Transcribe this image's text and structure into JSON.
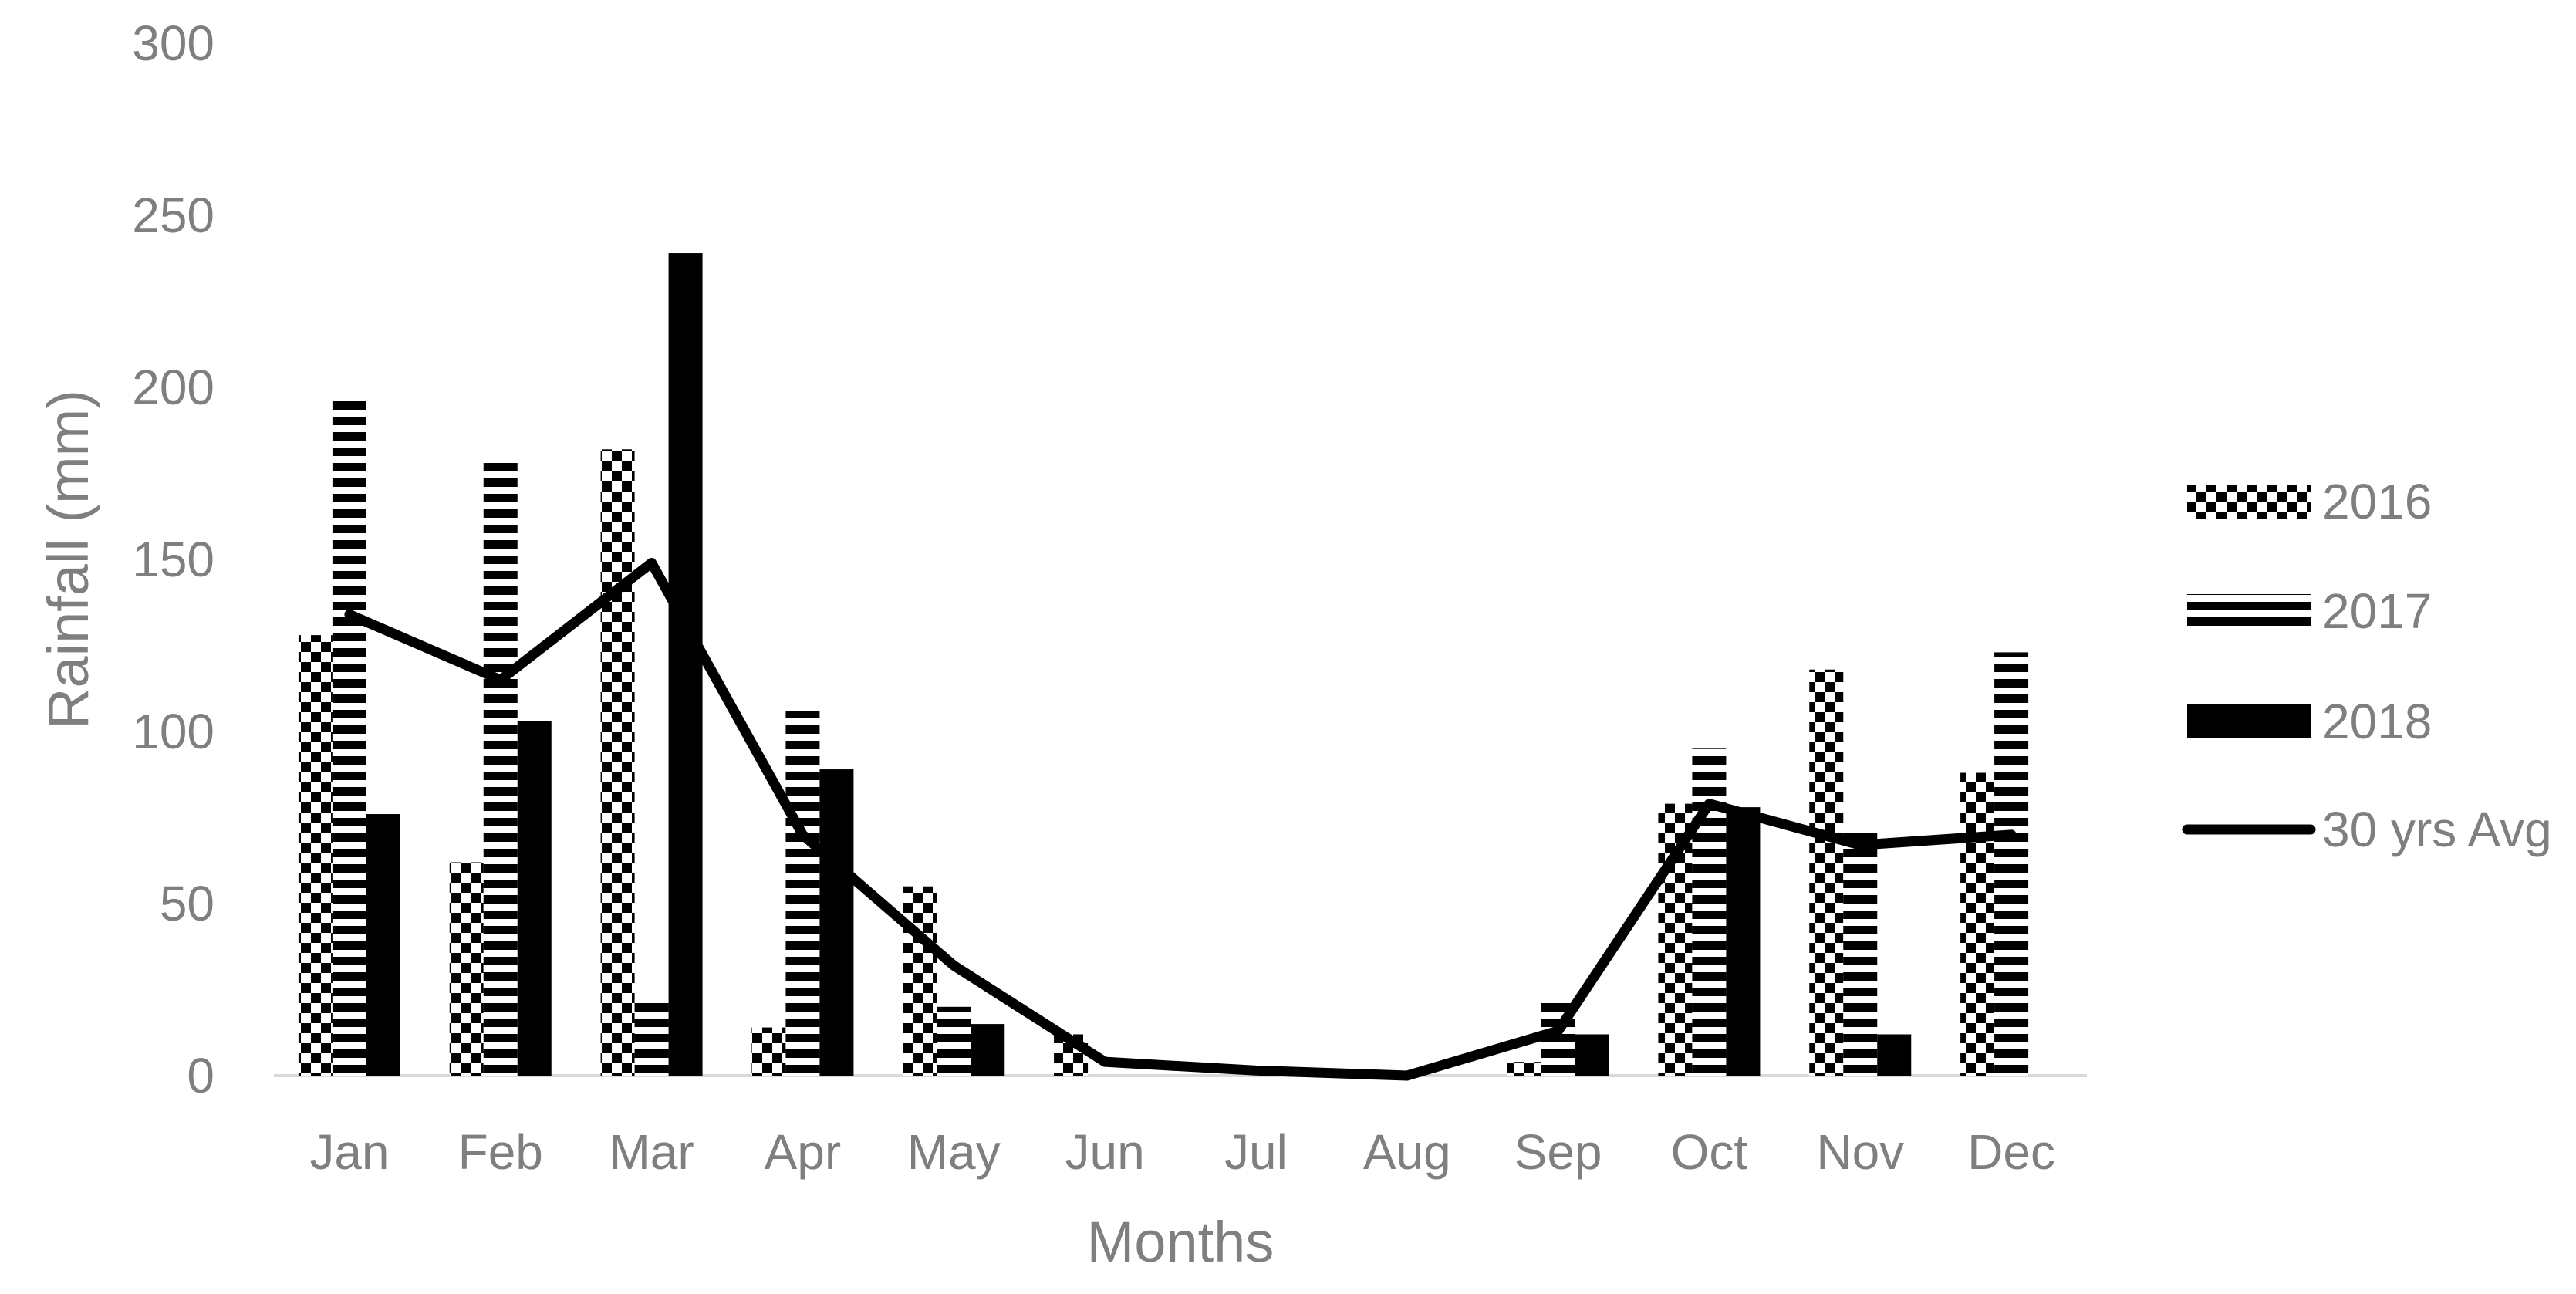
{
  "chart_data": {
    "type": "bar",
    "title": "",
    "xlabel": "Months",
    "ylabel": "Rainfall (mm)",
    "ylim": [
      0,
      300
    ],
    "yticks": [
      "0",
      "50",
      "100",
      "150",
      "200",
      "250",
      "300"
    ],
    "grid": false,
    "legend_position": "right",
    "categories": [
      "Jan",
      "Feb",
      "Mar",
      "Apr",
      "May",
      "Jun",
      "Jul",
      "Aug",
      "Sep",
      "Oct",
      "Nov",
      "Dec"
    ],
    "series": [
      {
        "name": "2016",
        "type": "bar",
        "pattern": "checker",
        "values": [
          128,
          62,
          182,
          14,
          55,
          12,
          0,
          0,
          4,
          79,
          118,
          88
        ]
      },
      {
        "name": "2017",
        "type": "bar",
        "pattern": "hstripes",
        "values": [
          196,
          180,
          22,
          106,
          20,
          0,
          0,
          0,
          22,
          95,
          72,
          123
        ]
      },
      {
        "name": "2018",
        "type": "bar",
        "pattern": "solid",
        "values": [
          76,
          103,
          239,
          89,
          15,
          0,
          0,
          0,
          12,
          78,
          12,
          0
        ]
      },
      {
        "name": "30 yrs Avg",
        "type": "line",
        "values": [
          134,
          115,
          149,
          70,
          32,
          4,
          1.5,
          0,
          13,
          79,
          67,
          70
        ]
      }
    ],
    "colors": {
      "series": "#000000",
      "axis_text": "#7f7f7f",
      "axis_line": "#d9d9d9"
    }
  }
}
